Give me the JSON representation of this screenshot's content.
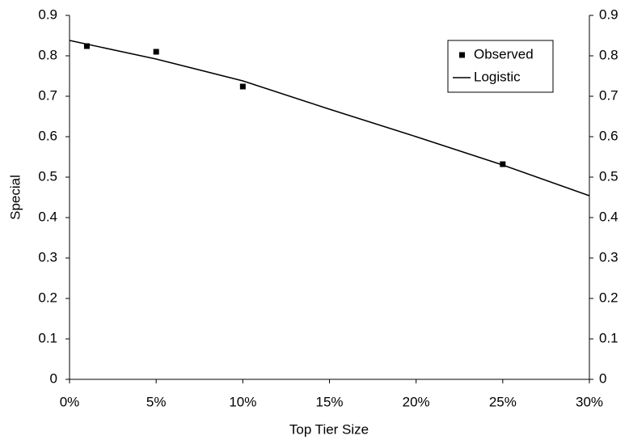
{
  "chart_data": {
    "type": "line",
    "x_label": "Top Tier Size",
    "y_label": "Special",
    "xlim": [
      0,
      30
    ],
    "xticks": [
      {
        "value": 0,
        "label": "0%"
      },
      {
        "value": 5,
        "label": "5%"
      },
      {
        "value": 10,
        "label": "10%"
      },
      {
        "value": 15,
        "label": "15%"
      },
      {
        "value": 20,
        "label": "20%"
      },
      {
        "value": 25,
        "label": "25%"
      },
      {
        "value": 30,
        "label": "30%"
      }
    ],
    "ylim": [
      0,
      0.9
    ],
    "yticks": [
      0,
      0.1,
      0.2,
      0.3,
      0.4,
      0.5,
      0.6,
      0.7,
      0.8,
      0.9
    ],
    "y2lim": [
      0,
      0.9
    ],
    "y2ticks": [
      0,
      0.1,
      0.2,
      0.3,
      0.4,
      0.5,
      0.6,
      0.7,
      0.8,
      0.9
    ],
    "grid": false,
    "legend": "upper-right",
    "series": [
      {
        "name": "Observed",
        "style": "marker",
        "color": "#000000",
        "x": [
          1,
          5,
          10,
          25
        ],
        "values": [
          0.824,
          0.81,
          0.724,
          0.532
        ]
      },
      {
        "name": "Logistic",
        "style": "line",
        "color": "#000000",
        "x": [
          0,
          5,
          10,
          15,
          20,
          25,
          30
        ],
        "values": [
          0.838,
          0.792,
          0.738,
          0.668,
          0.6,
          0.53,
          0.454
        ]
      }
    ]
  }
}
